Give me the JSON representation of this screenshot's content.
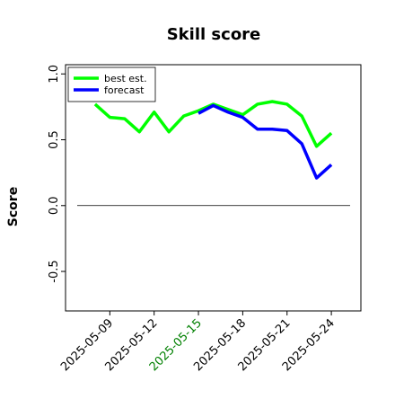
{
  "chart_data": {
    "type": "line",
    "title": "Skill score",
    "ylabel": "Score",
    "x": [
      "2025-05-08",
      "2025-05-09",
      "2025-05-10",
      "2025-05-11",
      "2025-05-12",
      "2025-05-13",
      "2025-05-14",
      "2025-05-15",
      "2025-05-16",
      "2025-05-17",
      "2025-05-18",
      "2025-05-19",
      "2025-05-20",
      "2025-05-21",
      "2025-05-22",
      "2025-05-23",
      "2025-05-24"
    ],
    "series": [
      {
        "name": "best est.",
        "color": "#00ff00",
        "values": [
          0.77,
          0.67,
          0.66,
          0.56,
          0.71,
          0.56,
          0.68,
          0.72,
          0.77,
          0.73,
          0.69,
          0.77,
          0.79,
          0.77,
          0.68,
          0.45,
          0.55
        ]
      },
      {
        "name": "forecast",
        "color": "#0000ff",
        "values": [
          null,
          null,
          null,
          null,
          null,
          null,
          null,
          0.7,
          0.76,
          0.71,
          0.67,
          0.58,
          0.58,
          0.57,
          0.47,
          0.21,
          0.31
        ]
      }
    ],
    "xlim": [
      "2025-05-06",
      "2025-05-26"
    ],
    "xticks": [
      "2025-05-09",
      "2025-05-12",
      "2025-05-15",
      "2025-05-18",
      "2025-05-21",
      "2025-05-24"
    ],
    "highlight_xtick": "2025-05-15",
    "highlight_color": "green",
    "ylim": [
      -0.8,
      1.07
    ],
    "yticks": [
      -0.5,
      {
        "value": 0,
        "label": "0.0"
      },
      0.5,
      {
        "value": 1,
        "label": "1.0"
      }
    ],
    "hline": 0,
    "legend": "upper left"
  }
}
